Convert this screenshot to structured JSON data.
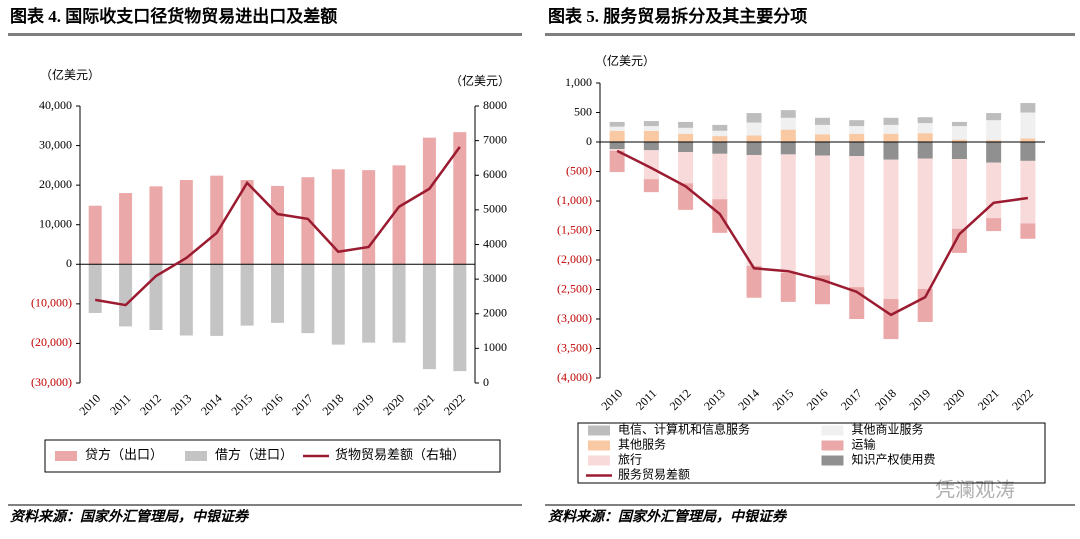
{
  "chart_data": [
    {
      "type": "bar",
      "title": "图表 4. 国际收支口径货物贸易进出口及差额",
      "ylabel": "（亿美元）",
      "y2label": "（亿美元）",
      "source": "资料来源：国家外汇管理局，中银证券",
      "categories": [
        "2010",
        "2011",
        "2012",
        "2013",
        "2014",
        "2015",
        "2016",
        "2017",
        "2018",
        "2019",
        "2020",
        "2021",
        "2022"
      ],
      "series": [
        {
          "name": "贷方（出口）",
          "color": "#eba8a8",
          "values": [
            14800,
            18000,
            19700,
            21300,
            22400,
            21300,
            19800,
            22000,
            24000,
            23800,
            25000,
            32000,
            33400
          ]
        },
        {
          "name": "借方（进口）",
          "color": "#c4c4c4",
          "values": [
            -12300,
            -15700,
            -16600,
            -18000,
            -18100,
            -15500,
            -14800,
            -17400,
            -20300,
            -19800,
            -19800,
            -26500,
            -27000
          ]
        },
        {
          "name": "货物贸易差额（右轴）",
          "color": "#9b1b30",
          "type": "line",
          "axis": "y2",
          "values": [
            2400,
            2250,
            3090,
            3610,
            4335,
            5780,
            4880,
            4740,
            3790,
            3930,
            5090,
            5610,
            6820
          ]
        }
      ],
      "ylim": [
        -30000,
        40000
      ],
      "yticks": [
        {
          "value": -30000,
          "label": "(30,000)"
        },
        {
          "value": -20000,
          "label": "(20,000)"
        },
        {
          "value": -10000,
          "label": "(10,000)"
        },
        0,
        {
          "value": 10000,
          "label": "10,000"
        },
        {
          "value": 20000,
          "label": "20,000"
        },
        {
          "value": 30000,
          "label": "30,000"
        },
        {
          "value": 40000,
          "label": "40,000"
        }
      ],
      "y2lim": [
        0,
        8000
      ],
      "y2ticks": [
        0,
        1000,
        2000,
        3000,
        4000,
        5000,
        6000,
        7000,
        8000
      ]
    },
    {
      "type": "stacked_bar",
      "title": "图表 5. 服务贸易拆分及其主要分项",
      "ylabel": "（亿美元）",
      "source": "资料来源：国家外汇管理局，中银证券",
      "watermark": "凭澜观涛",
      "categories": [
        "2010",
        "2011",
        "2012",
        "2013",
        "2014",
        "2015",
        "2016",
        "2017",
        "2018",
        "2019",
        "2020",
        "2021",
        "2022"
      ],
      "series": [
        {
          "name": "电信、计算机和信息服务",
          "color": "#bdbdbd",
          "values": [
            80,
            85,
            100,
            100,
            160,
            130,
            120,
            100,
            120,
            100,
            70,
            120,
            160
          ]
        },
        {
          "name": "其他商业服务",
          "color": "#f0f0f0",
          "values": [
            70,
            80,
            100,
            90,
            220,
            200,
            160,
            130,
            150,
            170,
            230,
            340,
            440
          ]
        },
        {
          "name": "其他服务",
          "color": "#f8c9a2",
          "values": [
            190,
            190,
            140,
            100,
            110,
            210,
            130,
            140,
            140,
            150,
            40,
            30,
            60
          ]
        },
        {
          "name": "运输",
          "color": "#eba8a8",
          "values": [
            -360,
            -220,
            -450,
            -570,
            -540,
            -490,
            -490,
            -540,
            -680,
            -560,
            -410,
            -220,
            -260
          ]
        },
        {
          "name": "旅行",
          "color": "#f9dada",
          "values": [
            -30,
            -490,
            -530,
            -770,
            -1880,
            -2010,
            -2030,
            -2220,
            -2360,
            -2210,
            -1180,
            -940,
            -1060
          ]
        },
        {
          "name": "知识产权使用费",
          "color": "#909090",
          "values": [
            -120,
            -140,
            -170,
            -200,
            -220,
            -210,
            -230,
            -240,
            -300,
            -280,
            -290,
            -350,
            -320
          ]
        },
        {
          "name": "服务贸易差额",
          "color": "#9b1b30",
          "type": "line",
          "values": [
            -150,
            -440,
            -750,
            -1220,
            -2140,
            -2190,
            -2340,
            -2540,
            -2930,
            -2630,
            -1560,
            -1030,
            -950
          ]
        }
      ],
      "ylim": [
        -4000,
        1000
      ],
      "yticks": [
        {
          "value": -4000,
          "label": "(4,000)"
        },
        {
          "value": -3500,
          "label": "(3,500)"
        },
        {
          "value": -3000,
          "label": "(3,000)"
        },
        {
          "value": -2500,
          "label": "(2,500)"
        },
        {
          "value": -2000,
          "label": "(2,000)"
        },
        {
          "value": -1500,
          "label": "(1,500)"
        },
        {
          "value": -1000,
          "label": "(1,000)"
        },
        {
          "value": -500,
          "label": "(500)"
        },
        0,
        500,
        {
          "value": 1000,
          "label": "1,000"
        }
      ]
    }
  ]
}
